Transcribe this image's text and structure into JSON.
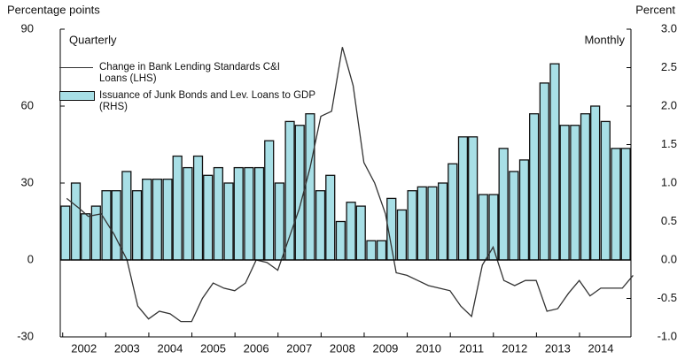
{
  "chart_data": {
    "type": "bar",
    "y_label": "Percentage points",
    "y2_label": "Percent",
    "left_annotation": "Quarterly",
    "right_annotation": "Monthly",
    "xlim": [
      2001.45,
      2014.7
    ],
    "xticks": [
      2002,
      2003,
      2004,
      2005,
      2006,
      2007,
      2008,
      2009,
      2010,
      2011,
      2012,
      2013,
      2014
    ],
    "ylim": [
      -30,
      90
    ],
    "yticks": [
      -30,
      0,
      30,
      60,
      90
    ],
    "y2lim": [
      -1,
      3
    ],
    "y2ticks": [
      {
        "value": -1,
        "label": "-1.0"
      },
      -0.5,
      {
        "value": 0,
        "label": "0.0"
      },
      0.5,
      {
        "value": 1,
        "label": "1.0"
      },
      1.5,
      {
        "value": 2,
        "label": "2.0"
      },
      2.5,
      {
        "value": 3,
        "label": "3.0"
      }
    ],
    "grid": false,
    "series": [
      {
        "name": "Issuance of Junk Bonds and Lev. Loans to GDP (RHS)",
        "type": "bar",
        "axis": "y2",
        "color": "#a8dfe6",
        "x": [
          2001.57,
          2001.81,
          2002.04,
          2002.28,
          2002.52,
          2002.75,
          2002.99,
          2003.23,
          2003.46,
          2003.7,
          2003.94,
          2004.17,
          2004.41,
          2004.65,
          2004.88,
          2005.12,
          2005.36,
          2005.59,
          2005.83,
          2006.07,
          2006.3,
          2006.54,
          2006.78,
          2007.01,
          2007.25,
          2007.49,
          2007.72,
          2007.96,
          2008.2,
          2008.43,
          2008.67,
          2008.91,
          2009.14,
          2009.38,
          2009.62,
          2009.85,
          2010.09,
          2010.33,
          2010.56,
          2010.8,
          2011.03,
          2011.27,
          2011.51,
          2011.74,
          2011.98,
          2012.22,
          2012.45,
          2012.69,
          2012.93,
          2013.16,
          2013.4,
          2013.64,
          2013.87,
          2014.11,
          2014.35,
          2014.58
        ],
        "values": [
          0.7,
          1.0,
          0.6,
          0.7,
          0.9,
          0.9,
          1.15,
          0.9,
          1.05,
          1.05,
          1.05,
          1.35,
          1.2,
          1.35,
          1.1,
          1.2,
          1.0,
          1.2,
          1.2,
          1.2,
          1.55,
          1.0,
          1.8,
          1.75,
          1.9,
          0.9,
          1.1,
          0.5,
          0.75,
          0.7,
          0.25,
          0.25,
          0.8,
          0.65,
          0.9,
          0.95,
          0.95,
          1.0,
          1.25,
          1.6,
          1.6,
          0.85,
          0.85,
          1.45,
          1.15,
          1.3,
          1.9,
          2.3,
          2.55,
          1.75,
          1.75,
          1.9,
          2.0,
          1.8,
          1.45,
          1.45
        ]
      },
      {
        "name": "Change in Bank Lending Standards C&I Loans (LHS)",
        "type": "line",
        "color": "#333333",
        "x": [
          2001.6,
          2001.9,
          2002.1,
          2002.4,
          2002.7,
          2003.0,
          2003.25,
          2003.5,
          2003.75,
          2004.0,
          2004.25,
          2004.5,
          2004.75,
          2005.0,
          2005.25,
          2005.5,
          2005.75,
          2006.0,
          2006.25,
          2006.5,
          2006.75,
          2007.0,
          2007.25,
          2007.5,
          2007.75,
          2008.0,
          2008.25,
          2008.5,
          2008.75,
          2009.0,
          2009.25,
          2009.5,
          2009.75,
          2010.0,
          2010.25,
          2010.5,
          2010.75,
          2011.0,
          2011.25,
          2011.5,
          2011.75,
          2012.0,
          2012.25,
          2012.5,
          2012.75,
          2013.0,
          2013.25,
          2013.5,
          2013.75,
          2014.0,
          2014.25,
          2014.5,
          2014.75
        ],
        "values": [
          24,
          20,
          17,
          18,
          10,
          0,
          -18,
          -23,
          -20,
          -21,
          -24,
          -24,
          -15,
          -9,
          -11,
          -12,
          -9,
          0,
          -1,
          -4,
          8,
          20,
          36,
          56,
          58,
          83,
          68,
          38,
          30,
          18,
          -5,
          -6,
          -8,
          -10,
          -11,
          -12,
          -18,
          -22,
          -2,
          5,
          -8,
          -10,
          -8,
          -8,
          -20,
          -19,
          -13,
          -8,
          -14,
          -11,
          -11,
          -11,
          -6
        ]
      }
    ]
  }
}
